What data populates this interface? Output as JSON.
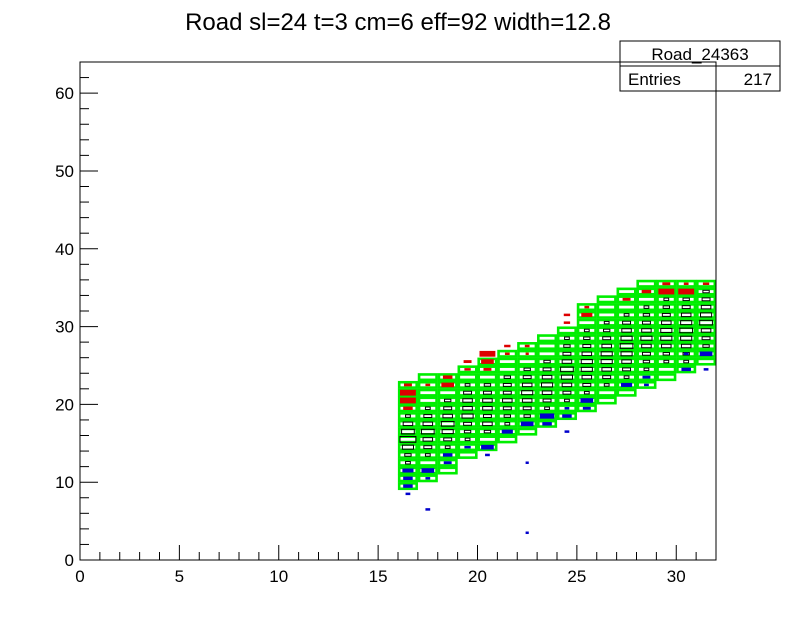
{
  "chart_data": {
    "type": "heatmap",
    "title": "Road sl=24 t=3 cm=6 eff=92 width=12.8",
    "xlabel": "",
    "ylabel": "",
    "xlim": [
      0,
      32
    ],
    "ylim": [
      0,
      64
    ],
    "x_ticks": [
      "0",
      "5",
      "10",
      "15",
      "20",
      "25",
      "30"
    ],
    "y_ticks": [
      "0",
      "10",
      "20",
      "30",
      "40",
      "50",
      "60"
    ],
    "grid": false,
    "stats_box": {
      "name": "Road_24363",
      "entries_label": "Entries",
      "entries_value": "217"
    },
    "colors": {
      "road": "#00ee00",
      "above": "#dd0000",
      "below": "#0000cc",
      "inside": "#000000"
    },
    "road_columns": [
      {
        "x": 16,
        "ylo": 9,
        "yhi": 23
      },
      {
        "x": 17,
        "ylo": 10,
        "yhi": 24
      },
      {
        "x": 18,
        "ylo": 11,
        "yhi": 24
      },
      {
        "x": 19,
        "ylo": 13,
        "yhi": 25
      },
      {
        "x": 20,
        "ylo": 14,
        "yhi": 26
      },
      {
        "x": 21,
        "ylo": 15,
        "yhi": 27
      },
      {
        "x": 22,
        "ylo": 16,
        "yhi": 28
      },
      {
        "x": 23,
        "ylo": 17,
        "yhi": 29
      },
      {
        "x": 24,
        "ylo": 18,
        "yhi": 30
      },
      {
        "x": 25,
        "ylo": 19,
        "yhi": 33
      },
      {
        "x": 26,
        "ylo": 20,
        "yhi": 34
      },
      {
        "x": 27,
        "ylo": 21,
        "yhi": 35
      },
      {
        "x": 28,
        "ylo": 22,
        "yhi": 36
      },
      {
        "x": 29,
        "ylo": 23,
        "yhi": 36
      },
      {
        "x": 30,
        "ylo": 24,
        "yhi": 36
      },
      {
        "x": 31,
        "ylo": 25,
        "yhi": 36
      }
    ],
    "red_cells": [
      [
        16.5,
        22.5,
        0.5
      ],
      [
        16.5,
        21.5,
        1
      ],
      [
        16.5,
        20.5,
        1
      ],
      [
        16.5,
        19.5,
        0.6
      ],
      [
        17.5,
        22.5,
        0.3
      ],
      [
        18.5,
        23.5,
        0.6
      ],
      [
        18.5,
        22.5,
        0.8
      ],
      [
        19.5,
        25.5,
        0.5
      ],
      [
        19.5,
        24.5,
        0.4
      ],
      [
        20.5,
        26.5,
        1
      ],
      [
        20.5,
        25.5,
        0.8
      ],
      [
        20.5,
        24.5,
        0.5
      ],
      [
        21.5,
        27.5,
        0.4
      ],
      [
        21.5,
        26.5,
        0.3
      ],
      [
        22.5,
        27.5,
        0.3
      ],
      [
        22.5,
        26.5,
        0.2
      ],
      [
        24.5,
        31.5,
        0.4
      ],
      [
        24.5,
        30.5,
        0.4
      ],
      [
        25.5,
        31.5,
        0.7
      ],
      [
        25.5,
        32.5,
        0.3
      ],
      [
        27.5,
        33.5,
        0.5
      ],
      [
        28.5,
        34.5,
        0.6
      ],
      [
        29.5,
        34.5,
        1
      ],
      [
        29.5,
        35.5,
        0.5
      ],
      [
        30.5,
        34.5,
        1
      ],
      [
        30.5,
        35.5,
        0.3
      ],
      [
        31.5,
        35.5,
        0.4
      ]
    ],
    "blue_cells": [
      [
        16.5,
        11.5,
        0.7
      ],
      [
        16.5,
        10.5,
        0.6
      ],
      [
        16.5,
        9.5,
        0.6
      ],
      [
        16.5,
        8.5,
        0.3
      ],
      [
        17.5,
        11.5,
        0.8
      ],
      [
        17.5,
        10.5,
        0.3
      ],
      [
        17.5,
        6.5,
        0.3
      ],
      [
        18.5,
        13.5,
        0.6
      ],
      [
        18.5,
        12.5,
        0.5
      ],
      [
        19.5,
        14.5,
        0.4
      ],
      [
        20.5,
        14.5,
        0.8
      ],
      [
        20.5,
        13.5,
        0.3
      ],
      [
        21.5,
        16.5,
        0.7
      ],
      [
        22.5,
        17.5,
        0.8
      ],
      [
        22.5,
        12.5,
        0.2
      ],
      [
        22.5,
        3.5,
        0.2
      ],
      [
        23.5,
        18.5,
        0.9
      ],
      [
        23.5,
        17.5,
        0.6
      ],
      [
        24.5,
        18.5,
        0.6
      ],
      [
        24.5,
        19.5,
        0.3
      ],
      [
        24.5,
        16.5,
        0.3
      ],
      [
        25.5,
        20.5,
        0.8
      ],
      [
        25.5,
        19.5,
        0.5
      ],
      [
        27.5,
        22.5,
        0.7
      ],
      [
        28.5,
        23.5,
        0.5
      ],
      [
        28.5,
        22.5,
        0.3
      ],
      [
        30.5,
        24.5,
        0.6
      ],
      [
        30.5,
        26.5,
        0.3
      ],
      [
        31.5,
        26.5,
        0.8
      ],
      [
        31.5,
        24.5,
        0.3
      ]
    ],
    "inside_cells": [
      [
        16.5,
        18.5,
        0.3
      ],
      [
        16.5,
        17.5,
        0.6
      ],
      [
        16.5,
        16.5,
        0.8
      ],
      [
        16.5,
        15.5,
        1
      ],
      [
        16.5,
        14.5,
        0.7
      ],
      [
        16.5,
        13.5,
        0.4
      ],
      [
        16.5,
        12.5,
        0.3
      ],
      [
        17.5,
        19.5,
        0.3
      ],
      [
        17.5,
        18.5,
        0.5
      ],
      [
        17.5,
        17.5,
        0.6
      ],
      [
        17.5,
        16.5,
        0.8
      ],
      [
        17.5,
        15.5,
        0.6
      ],
      [
        17.5,
        14.5,
        0.5
      ],
      [
        17.5,
        13.5,
        0.3
      ],
      [
        18.5,
        20.5,
        0.4
      ],
      [
        18.5,
        19.5,
        0.5
      ],
      [
        18.5,
        18.5,
        0.6
      ],
      [
        18.5,
        17.5,
        0.8
      ],
      [
        18.5,
        16.5,
        0.7
      ],
      [
        18.5,
        15.5,
        0.5
      ],
      [
        18.5,
        14.5,
        0.3
      ],
      [
        19.5,
        22.5,
        0.3
      ],
      [
        19.5,
        21.5,
        0.5
      ],
      [
        19.5,
        20.5,
        0.6
      ],
      [
        19.5,
        19.5,
        0.6
      ],
      [
        19.5,
        18.5,
        0.7
      ],
      [
        19.5,
        17.5,
        0.5
      ],
      [
        19.5,
        16.5,
        0.4
      ],
      [
        19.5,
        15.5,
        0.3
      ],
      [
        20.5,
        22.5,
        0.4
      ],
      [
        20.5,
        21.5,
        0.5
      ],
      [
        20.5,
        20.5,
        0.6
      ],
      [
        20.5,
        19.5,
        0.6
      ],
      [
        20.5,
        18.5,
        0.5
      ],
      [
        20.5,
        17.5,
        0.6
      ],
      [
        20.5,
        16.5,
        0.4
      ],
      [
        21.5,
        23.5,
        0.4
      ],
      [
        21.5,
        22.5,
        0.5
      ],
      [
        21.5,
        21.5,
        0.5
      ],
      [
        21.5,
        20.5,
        0.6
      ],
      [
        21.5,
        19.5,
        0.5
      ],
      [
        21.5,
        18.5,
        0.4
      ],
      [
        21.5,
        17.5,
        0.3
      ],
      [
        22.5,
        24.5,
        0.4
      ],
      [
        22.5,
        23.5,
        0.5
      ],
      [
        22.5,
        22.5,
        0.6
      ],
      [
        22.5,
        21.5,
        0.7
      ],
      [
        22.5,
        20.5,
        0.6
      ],
      [
        22.5,
        19.5,
        0.5
      ],
      [
        22.5,
        18.5,
        0.4
      ],
      [
        23.5,
        25.5,
        0.4
      ],
      [
        23.5,
        24.5,
        0.5
      ],
      [
        23.5,
        23.5,
        0.6
      ],
      [
        23.5,
        22.5,
        0.7
      ],
      [
        23.5,
        21.5,
        0.6
      ],
      [
        23.5,
        20.5,
        0.5
      ],
      [
        23.5,
        19.5,
        0.3
      ],
      [
        24.5,
        28.5,
        0.3
      ],
      [
        24.5,
        27.5,
        0.4
      ],
      [
        24.5,
        26.5,
        0.5
      ],
      [
        24.5,
        25.5,
        0.6
      ],
      [
        24.5,
        24.5,
        0.8
      ],
      [
        24.5,
        23.5,
        0.7
      ],
      [
        24.5,
        22.5,
        0.6
      ],
      [
        24.5,
        21.5,
        0.5
      ],
      [
        24.5,
        20.5,
        0.3
      ],
      [
        25.5,
        29.5,
        0.3
      ],
      [
        25.5,
        28.5,
        0.4
      ],
      [
        25.5,
        27.5,
        0.5
      ],
      [
        25.5,
        26.5,
        0.6
      ],
      [
        25.5,
        25.5,
        0.7
      ],
      [
        25.5,
        24.5,
        0.7
      ],
      [
        25.5,
        23.5,
        0.6
      ],
      [
        25.5,
        22.5,
        0.5
      ],
      [
        25.5,
        21.5,
        0.3
      ],
      [
        26.5,
        30.5,
        0.3
      ],
      [
        26.5,
        29.5,
        0.4
      ],
      [
        26.5,
        28.5,
        0.5
      ],
      [
        26.5,
        27.5,
        0.6
      ],
      [
        26.5,
        26.5,
        0.7
      ],
      [
        26.5,
        25.5,
        0.7
      ],
      [
        26.5,
        24.5,
        0.6
      ],
      [
        26.5,
        23.5,
        0.5
      ],
      [
        26.5,
        22.5,
        0.3
      ],
      [
        27.5,
        31.5,
        0.3
      ],
      [
        27.5,
        30.5,
        0.5
      ],
      [
        27.5,
        29.5,
        0.6
      ],
      [
        27.5,
        28.5,
        0.7
      ],
      [
        27.5,
        27.5,
        0.8
      ],
      [
        27.5,
        26.5,
        0.7
      ],
      [
        27.5,
        25.5,
        0.6
      ],
      [
        27.5,
        24.5,
        0.5
      ],
      [
        27.5,
        23.5,
        0.3
      ],
      [
        28.5,
        32.5,
        0.3
      ],
      [
        28.5,
        31.5,
        0.4
      ],
      [
        28.5,
        30.5,
        0.5
      ],
      [
        28.5,
        29.5,
        0.6
      ],
      [
        28.5,
        28.5,
        0.7
      ],
      [
        28.5,
        27.5,
        0.6
      ],
      [
        28.5,
        26.5,
        0.5
      ],
      [
        28.5,
        25.5,
        0.4
      ],
      [
        28.5,
        24.5,
        0.3
      ],
      [
        29.5,
        33.5,
        0.3
      ],
      [
        29.5,
        32.5,
        0.4
      ],
      [
        29.5,
        31.5,
        0.5
      ],
      [
        29.5,
        30.5,
        0.6
      ],
      [
        29.5,
        29.5,
        0.7
      ],
      [
        29.5,
        28.5,
        0.7
      ],
      [
        29.5,
        27.5,
        0.6
      ],
      [
        29.5,
        26.5,
        0.4
      ],
      [
        29.5,
        25.5,
        0.3
      ],
      [
        30.5,
        33.5,
        0.4
      ],
      [
        30.5,
        32.5,
        0.5
      ],
      [
        30.5,
        31.5,
        0.6
      ],
      [
        30.5,
        30.5,
        0.7
      ],
      [
        30.5,
        29.5,
        0.8
      ],
      [
        30.5,
        28.5,
        0.7
      ],
      [
        30.5,
        27.5,
        0.6
      ],
      [
        30.5,
        26.5,
        0.4
      ],
      [
        30.5,
        25.5,
        0.3
      ],
      [
        31.5,
        34.5,
        0.4
      ],
      [
        31.5,
        33.5,
        0.5
      ],
      [
        31.5,
        32.5,
        0.6
      ],
      [
        31.5,
        31.5,
        0.7
      ],
      [
        31.5,
        30.5,
        0.8
      ],
      [
        31.5,
        29.5,
        0.6
      ],
      [
        31.5,
        28.5,
        0.5
      ],
      [
        31.5,
        27.5,
        0.4
      ]
    ]
  }
}
